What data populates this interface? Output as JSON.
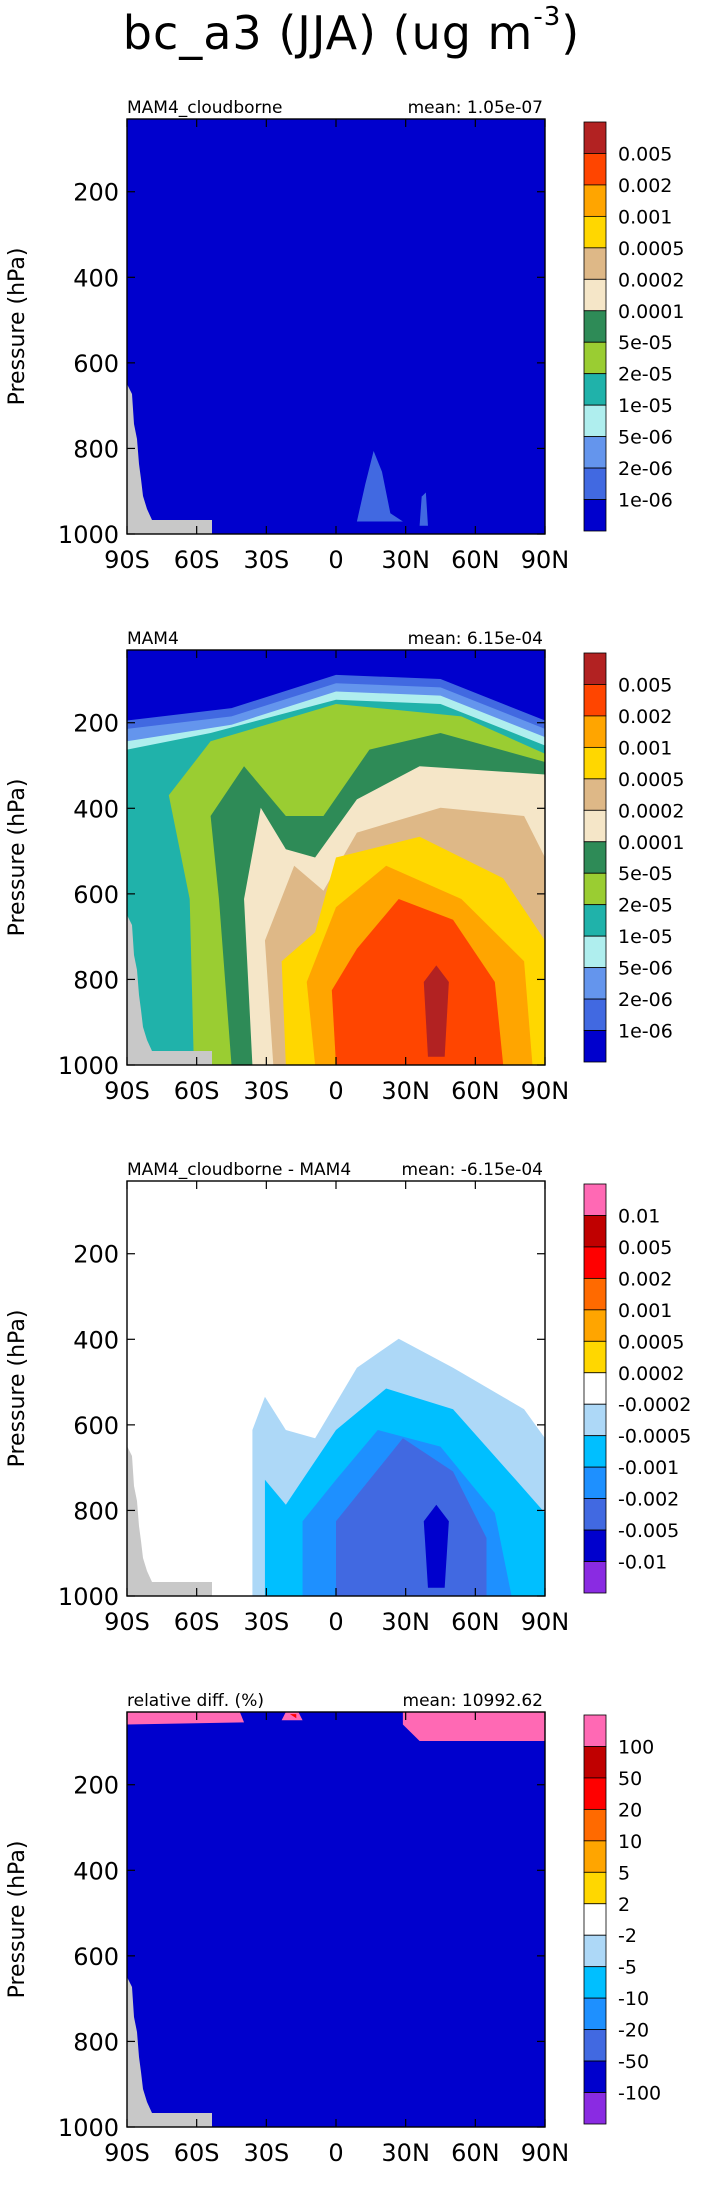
{
  "title_main": "bc_a3 (JJA) (ug m",
  "title_sup": "-3",
  "chart_data": [
    {
      "type": "heatmap",
      "panel_title": "MAM4_cloudborne",
      "mean_label": "mean: 1.05e-07",
      "ylabel": "Pressure (hPa)",
      "xlabel": "",
      "x_tick_labels": [
        "90S",
        "60S",
        "30S",
        "0",
        "30N",
        "60N",
        "90N"
      ],
      "x_ticks": [
        -90,
        -60,
        -30,
        0,
        30,
        60,
        90
      ],
      "y_tick_labels": [
        "200",
        "400",
        "600",
        "800",
        "1000"
      ],
      "y_ticks": [
        200,
        400,
        600,
        800,
        1000
      ],
      "xlim": [
        -90,
        90
      ],
      "ylim": [
        1000,
        30
      ],
      "colorbar": {
        "labels": [
          "0.005",
          "0.002",
          "0.001",
          "0.0005",
          "0.0002",
          "0.0001",
          "5e-05",
          "2e-05",
          "1e-05",
          "5e-06",
          "2e-06",
          "1e-06"
        ],
        "colors": [
          "#b22222",
          "#ff4500",
          "#ffa500",
          "#ffd700",
          "#deb887",
          "#f5e6c8",
          "#2e8b57",
          "#9acd32",
          "#20b2aa",
          "#afeeee",
          "#6495ed",
          "#4169e1",
          "#0000cd"
        ]
      }
    },
    {
      "type": "heatmap",
      "panel_title": "MAM4",
      "mean_label": "mean: 6.15e-04",
      "ylabel": "Pressure (hPa)",
      "xlabel": "",
      "x_tick_labels": [
        "90S",
        "60S",
        "30S",
        "0",
        "30N",
        "60N",
        "90N"
      ],
      "x_ticks": [
        -90,
        -60,
        -30,
        0,
        30,
        60,
        90
      ],
      "y_tick_labels": [
        "200",
        "400",
        "600",
        "800",
        "1000"
      ],
      "y_ticks": [
        200,
        400,
        600,
        800,
        1000
      ],
      "xlim": [
        -90,
        90
      ],
      "ylim": [
        1000,
        30
      ],
      "colorbar": {
        "labels": [
          "0.005",
          "0.002",
          "0.001",
          "0.0005",
          "0.0002",
          "0.0001",
          "5e-05",
          "2e-05",
          "1e-05",
          "5e-06",
          "2e-06",
          "1e-06"
        ],
        "colors": [
          "#b22222",
          "#ff4500",
          "#ffa500",
          "#ffd700",
          "#deb887",
          "#f5e6c8",
          "#2e8b57",
          "#9acd32",
          "#20b2aa",
          "#afeeee",
          "#6495ed",
          "#4169e1",
          "#0000cd"
        ]
      }
    },
    {
      "type": "heatmap",
      "panel_title": "MAM4_cloudborne - MAM4",
      "mean_label": "mean: -6.15e-04",
      "ylabel": "Pressure (hPa)",
      "xlabel": "",
      "x_tick_labels": [
        "90S",
        "60S",
        "30S",
        "0",
        "30N",
        "60N",
        "90N"
      ],
      "x_ticks": [
        -90,
        -60,
        -30,
        0,
        30,
        60,
        90
      ],
      "y_tick_labels": [
        "200",
        "400",
        "600",
        "800",
        "1000"
      ],
      "y_ticks": [
        200,
        400,
        600,
        800,
        1000
      ],
      "xlim": [
        -90,
        90
      ],
      "ylim": [
        1000,
        30
      ],
      "colorbar": {
        "labels": [
          "0.01",
          "0.005",
          "0.002",
          "0.001",
          "0.0005",
          "0.0002",
          "-0.0002",
          "-0.0005",
          "-0.001",
          "-0.002",
          "-0.005",
          "-0.01"
        ],
        "colors": [
          "#ff69b4",
          "#c00000",
          "#ff0000",
          "#ff6a00",
          "#ffa500",
          "#ffd700",
          "#ffffff",
          "#add8f7",
          "#00bfff",
          "#1e90ff",
          "#4169e1",
          "#0000cd",
          "#8a2be2"
        ]
      }
    },
    {
      "type": "heatmap",
      "panel_title": "relative diff. (%)",
      "mean_label": "mean: 10992.62",
      "ylabel": "Pressure (hPa)",
      "xlabel": "",
      "x_tick_labels": [
        "90S",
        "60S",
        "30S",
        "0",
        "30N",
        "60N",
        "90N"
      ],
      "x_ticks": [
        -90,
        -60,
        -30,
        0,
        30,
        60,
        90
      ],
      "y_tick_labels": [
        "200",
        "400",
        "600",
        "800",
        "1000"
      ],
      "y_ticks": [
        200,
        400,
        600,
        800,
        1000
      ],
      "xlim": [
        -90,
        90
      ],
      "ylim": [
        1000,
        30
      ],
      "colorbar": {
        "labels": [
          "100",
          "50",
          "20",
          "10",
          "5",
          "2",
          "-2",
          "-5",
          "-10",
          "-20",
          "-50",
          "-100"
        ],
        "colors": [
          "#ff69b4",
          "#c00000",
          "#ff0000",
          "#ff6a00",
          "#ffa500",
          "#ffd700",
          "#ffffff",
          "#add8f7",
          "#00bfff",
          "#1e90ff",
          "#4169e1",
          "#0000cd",
          "#8a2be2"
        ]
      }
    }
  ]
}
